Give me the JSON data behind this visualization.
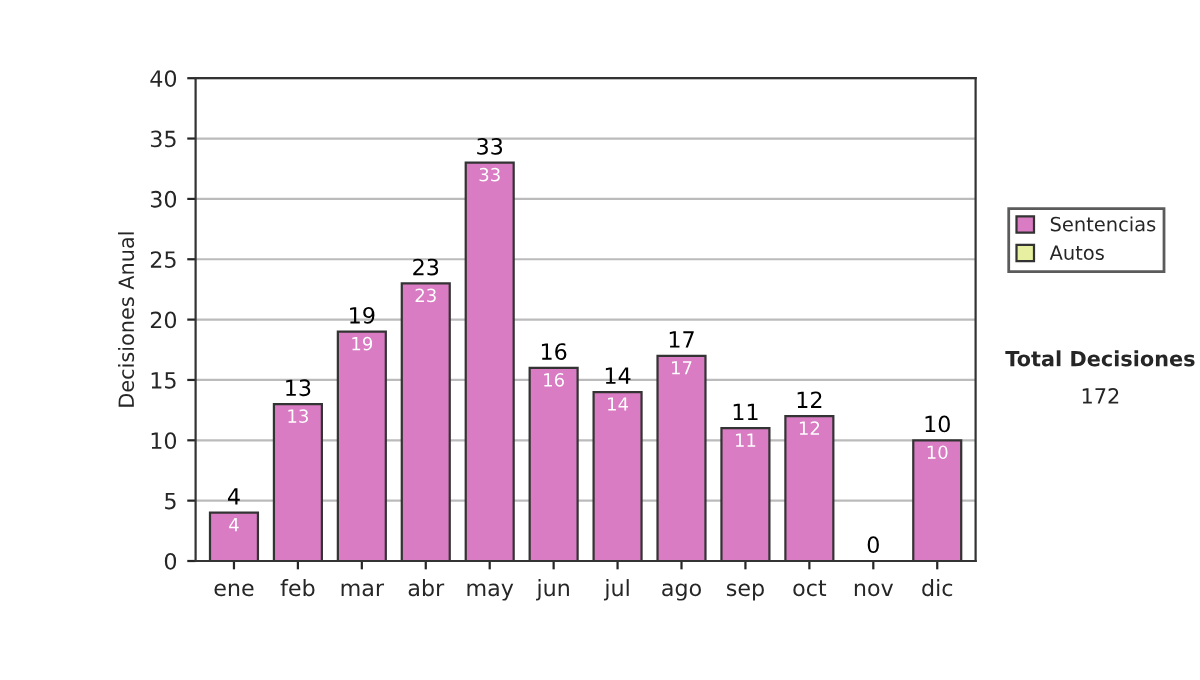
{
  "chart_data": {
    "type": "bar",
    "stacked": true,
    "categories": [
      "ene",
      "feb",
      "mar",
      "abr",
      "may",
      "jun",
      "jul",
      "ago",
      "sep",
      "oct",
      "nov",
      "dic"
    ],
    "series": [
      {
        "name": "Sentencias",
        "color": "#d97cc3",
        "values": [
          4,
          13,
          19,
          23,
          33,
          16,
          14,
          17,
          11,
          12,
          0,
          10
        ],
        "value_labels": [
          "4",
          "13",
          "19",
          "23",
          "33",
          "16",
          "14",
          "17",
          "11",
          "12",
          null,
          "10"
        ]
      },
      {
        "name": "Autos",
        "color": "#e6f0a0",
        "values": [
          null,
          null,
          null,
          null,
          null,
          null,
          null,
          null,
          null,
          null,
          null,
          null
        ]
      }
    ],
    "totals": [
      "4",
      "13",
      "19",
      "23",
      "33",
      "16",
      "14",
      "17",
      "11",
      "12",
      "0",
      "10"
    ],
    "ylabel": "Decisiones Anual",
    "ylim": [
      0,
      40
    ],
    "yticks": [
      0,
      5,
      10,
      15,
      20,
      25,
      30,
      35,
      40
    ],
    "grid": "y",
    "legend": "right",
    "annotations": [
      "Total Decisiones",
      "172"
    ]
  }
}
